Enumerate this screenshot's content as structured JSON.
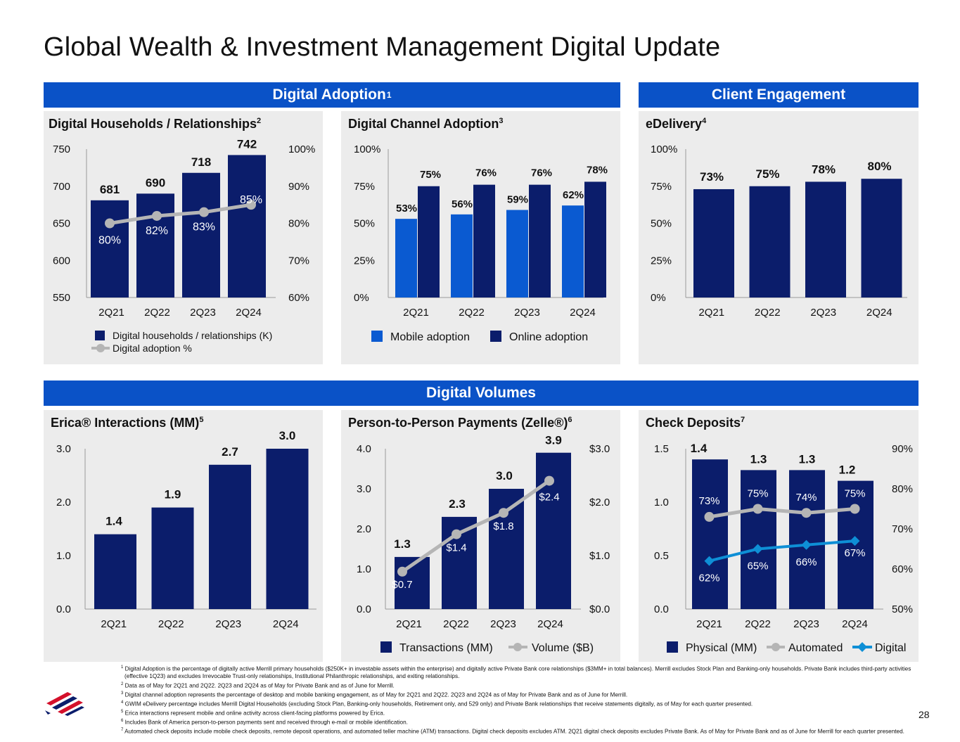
{
  "title": "Global Wealth & Investment Management Digital Update",
  "page_number": "28",
  "colors": {
    "navy": "#0b1d6b",
    "blue": "#0a52c7",
    "mobile": "#0a5ad1",
    "gray": "#b5b5b5",
    "digital": "#0e8fd6",
    "band": "#0a52c7",
    "panel": "#ececec"
  },
  "bands": {
    "digital_adoption": {
      "text": "Digital Adoption",
      "sup": "1"
    },
    "client_engagement": {
      "text": "Client Engagement"
    },
    "digital_volumes": {
      "text": "Digital Volumes"
    }
  },
  "panels": {
    "households": {
      "title": "Digital Households / Relationships",
      "sup": "2"
    },
    "channel": {
      "title": "Digital Channel Adoption",
      "sup": "3"
    },
    "edelivery": {
      "title": "eDelivery",
      "sup": "4"
    },
    "erica": {
      "title": "Erica® Interactions (MM)",
      "sup": "5"
    },
    "p2p": {
      "title": "Person-to-Person Payments (Zelle®)",
      "sup": "6"
    },
    "check": {
      "title": "Check Deposits",
      "sup": "7"
    }
  },
  "chart_data": [
    {
      "id": "households",
      "type": "bar+line",
      "categories": [
        "2Q21",
        "2Q22",
        "2Q23",
        "2Q24"
      ],
      "series": [
        {
          "name": "Digital households / relationships (K)",
          "values": [
            681,
            690,
            718,
            742
          ],
          "labels": [
            "681",
            "690",
            "718",
            "742"
          ],
          "axis": "left"
        },
        {
          "name": "Digital adoption %",
          "values": [
            80,
            82,
            83,
            85
          ],
          "labels": [
            "80%",
            "82%",
            "83%",
            "85%"
          ],
          "axis": "right"
        }
      ],
      "ylim": [
        550,
        750
      ],
      "yticks": [
        "550",
        "600",
        "650",
        "700",
        "750"
      ],
      "y2lim": [
        60,
        100
      ],
      "y2ticks": [
        "60%",
        "70%",
        "80%",
        "90%",
        "100%"
      ],
      "legend": [
        "Digital households / relationships (K)",
        "Digital adoption %"
      ]
    },
    {
      "id": "channel",
      "type": "grouped-bar",
      "categories": [
        "2Q21",
        "2Q22",
        "2Q23",
        "2Q24"
      ],
      "series": [
        {
          "name": "Mobile adoption",
          "values": [
            53,
            56,
            59,
            62
          ],
          "labels": [
            "53%",
            "56%",
            "59%",
            "62%"
          ]
        },
        {
          "name": "Online adoption",
          "values": [
            75,
            76,
            76,
            78
          ],
          "labels": [
            "75%",
            "76%",
            "76%",
            "78%"
          ]
        }
      ],
      "ylim": [
        0,
        100
      ],
      "yticks": [
        "0%",
        "25%",
        "50%",
        "75%",
        "100%"
      ],
      "legend": [
        "Mobile adoption",
        "Online adoption"
      ]
    },
    {
      "id": "edelivery",
      "type": "bar",
      "categories": [
        "2Q21",
        "2Q22",
        "2Q23",
        "2Q24"
      ],
      "series": [
        {
          "name": "eDelivery",
          "values": [
            73,
            75,
            78,
            80
          ],
          "labels": [
            "73%",
            "75%",
            "78%",
            "80%"
          ]
        }
      ],
      "ylim": [
        0,
        100
      ],
      "yticks": [
        "0%",
        "25%",
        "50%",
        "75%",
        "100%"
      ]
    },
    {
      "id": "erica",
      "type": "bar",
      "categories": [
        "2Q21",
        "2Q22",
        "2Q23",
        "2Q24"
      ],
      "series": [
        {
          "name": "Erica interactions (MM)",
          "values": [
            1.4,
            1.9,
            2.7,
            3.0
          ],
          "labels": [
            "1.4",
            "1.9",
            "2.7",
            "3.0"
          ]
        }
      ],
      "ylim": [
        0,
        3
      ],
      "yticks": [
        "0.0",
        "1.0",
        "2.0",
        "3.0"
      ]
    },
    {
      "id": "p2p",
      "type": "bar+line",
      "categories": [
        "2Q21",
        "2Q22",
        "2Q23",
        "2Q24"
      ],
      "series": [
        {
          "name": "Transactions (MM)",
          "values": [
            1.3,
            2.3,
            3.0,
            3.9
          ],
          "labels": [
            "1.3",
            "2.3",
            "3.0",
            "3.9"
          ],
          "axis": "left"
        },
        {
          "name": "Volume ($B)",
          "values": [
            0.7,
            1.4,
            1.8,
            2.4
          ],
          "labels": [
            "$0.7",
            "$1.4",
            "$1.8",
            "$2.4"
          ],
          "axis": "right"
        }
      ],
      "ylim": [
        0,
        4
      ],
      "yticks": [
        "0.0",
        "1.0",
        "2.0",
        "3.0",
        "4.0"
      ],
      "y2lim": [
        0,
        3
      ],
      "y2ticks": [
        "$0.0",
        "$1.0",
        "$2.0",
        "$3.0"
      ],
      "legend": [
        "Transactions (MM)",
        "Volume ($B)"
      ]
    },
    {
      "id": "check",
      "type": "bar+line",
      "categories": [
        "2Q21",
        "2Q22",
        "2Q23",
        "2Q24"
      ],
      "series": [
        {
          "name": "Physical (MM)",
          "values": [
            1.4,
            1.3,
            1.3,
            1.2
          ],
          "labels": [
            "1.4",
            "1.3",
            "1.3",
            "1.2"
          ],
          "axis": "left"
        },
        {
          "name": "Automated",
          "values": [
            73,
            75,
            74,
            75
          ],
          "labels": [
            "73%",
            "75%",
            "74%",
            "75%"
          ],
          "axis": "right"
        },
        {
          "name": "Digital",
          "values": [
            62,
            65,
            66,
            67
          ],
          "labels": [
            "62%",
            "65%",
            "66%",
            "67%"
          ],
          "axis": "right"
        }
      ],
      "ylim": [
        0,
        1.5
      ],
      "yticks": [
        "0.0",
        "0.5",
        "1.0",
        "1.5"
      ],
      "y2lim": [
        50,
        90
      ],
      "y2ticks": [
        "50%",
        "60%",
        "70%",
        "80%",
        "90%"
      ],
      "legend": [
        "Physical (MM)",
        "Automated",
        "Digital"
      ]
    }
  ],
  "footnotes": [
    {
      "sup": "1",
      "text": "Digital Adoption is the percentage of digitally active Merrill primary households ($250K+ in investable assets within the enterprise) and digitally active Private Bank core relationships ($3MM+ in total balances). Merrill excludes Stock Plan and Banking-only households. Private Bank includes third-party activities (effective 1Q23) and excludes Irrevocable Trust-only relationships, Institutional Philanthropic relationships, and exiting relationships."
    },
    {
      "sup": "2",
      "text": "Data as of May for 2Q21 and 2Q22. 2Q23 and 2Q24 as of May for Private Bank and as of June for Merrill."
    },
    {
      "sup": "3",
      "text": "Digital channel adoption represents the percentage of desktop and mobile banking engagement, as of May for 2Q21 and 2Q22. 2Q23 and 2Q24 as of May for Private Bank and as of June for Merrill."
    },
    {
      "sup": "4",
      "text": "GWIM eDelivery percentage includes Merrill Digital Households (excluding Stock Plan, Banking-only households, Retirement only, and 529 only) and Private Bank relationships that receive statements digitally, as of May for each quarter presented."
    },
    {
      "sup": "5",
      "text": "Erica interactions represent mobile and online activity across client-facing platforms powered by Erica."
    },
    {
      "sup": "6",
      "text": "Includes Bank of America person-to-person payments sent and received through e-mail or mobile identification."
    },
    {
      "sup": "7",
      "text": "Automated check deposits include mobile check deposits, remote deposit operations, and automated teller machine (ATM) transactions. Digital check deposits excludes ATM. 2Q21 digital check deposits excludes Private Bank. As of May for Private Bank and as of June for Merrill for each quarter presented."
    }
  ]
}
